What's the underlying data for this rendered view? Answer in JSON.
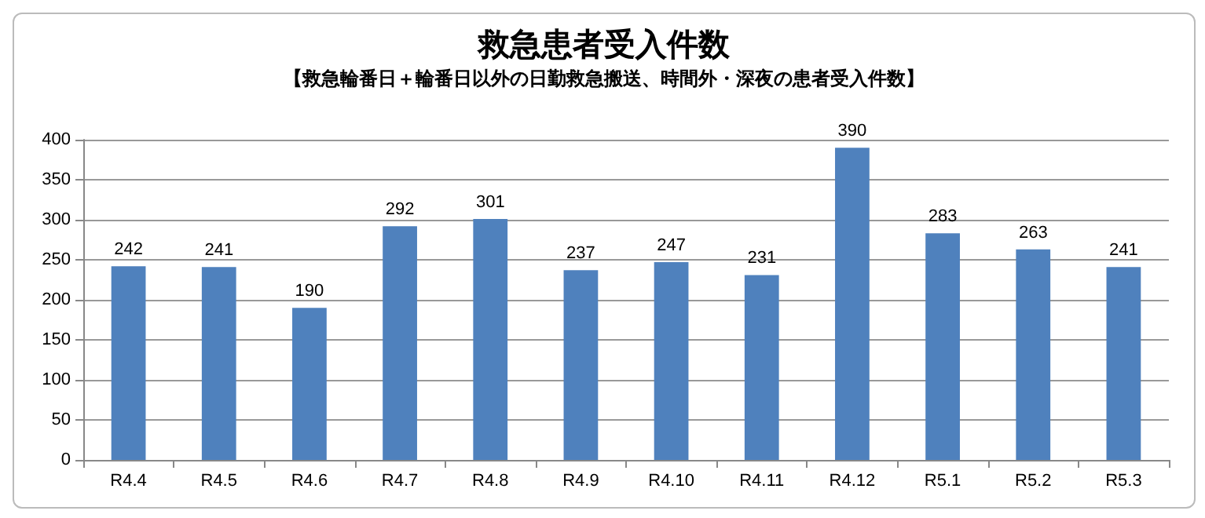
{
  "chart_data": {
    "type": "bar",
    "title": "救急患者受入件数",
    "subtitle": "【救急輪番日＋輪番日以外の日勤救急搬送、時間外・深夜の患者受入件数】",
    "categories": [
      "R4.4",
      "R4.5",
      "R4.6",
      "R4.7",
      "R4.8",
      "R4.9",
      "R4.10",
      "R4.11",
      "R4.12",
      "R5.1",
      "R5.2",
      "R5.3"
    ],
    "values": [
      242,
      241,
      190,
      292,
      301,
      237,
      247,
      231,
      390,
      283,
      263,
      241
    ],
    "color": "#4f81bd",
    "ylim": [
      0,
      400
    ],
    "yticks": [
      0,
      50,
      100,
      150,
      200,
      250,
      300,
      350,
      400
    ],
    "grid": "y",
    "data_labels": true
  }
}
